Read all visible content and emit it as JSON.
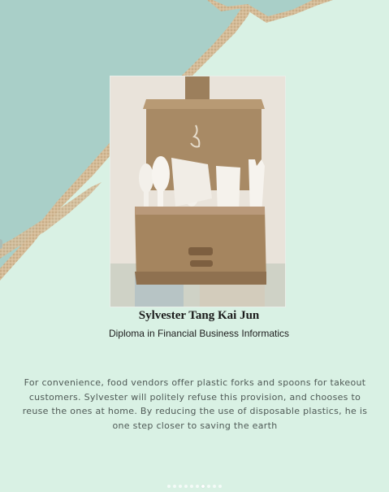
{
  "post": {
    "name": "Sylvester Tang Kai Jun",
    "program": "Diploma in Financial Business Informatics",
    "description_lines": [
      "For convenience, food vendors offer plastic forks and spoons for takeout",
      "customers. Sylvester will politely refuse this provision, and chooses to",
      "reuse the ones at home. By reducing the use of disposable plastics, he is",
      "one step closer to saving the earth"
    ]
  },
  "carousel": {
    "total": 10,
    "active": 6
  },
  "colors": {
    "background": "#d9f1e4",
    "teal_panel": "#a9cfc8",
    "sand_edge": "#cfb48f"
  },
  "photo": {
    "icon": "cardboard-cutlery-box-photo"
  }
}
